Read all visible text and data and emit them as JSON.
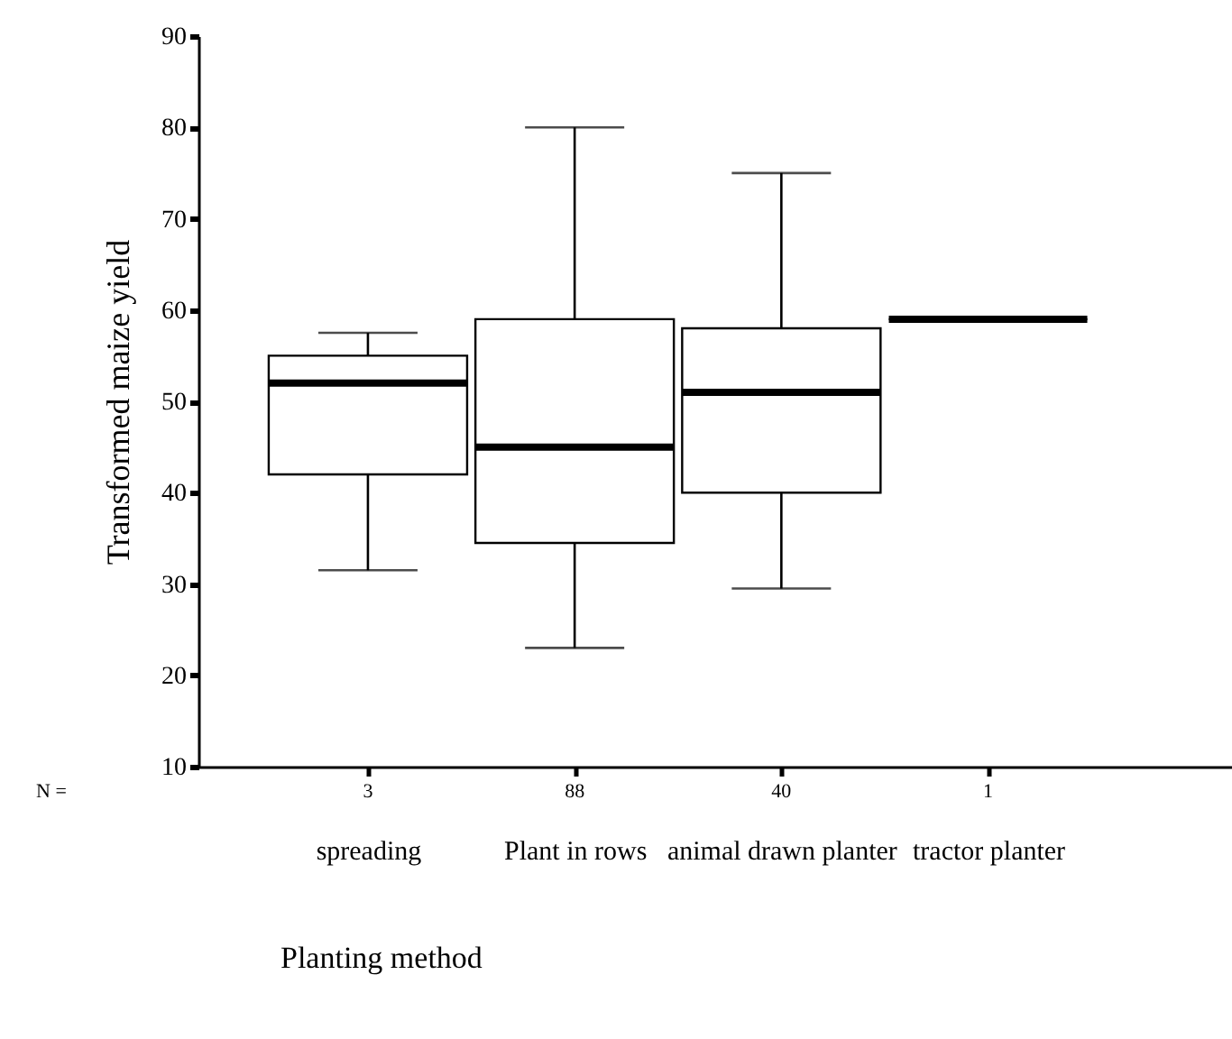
{
  "chart_data": {
    "type": "box",
    "xlabel": "Planting method",
    "ylabel": "Transformed maize yield",
    "categories": [
      "spreading",
      "Plant in rows",
      "animal drawn planter",
      "tractor planter"
    ],
    "boxes": [
      {
        "low": 31.5,
        "q1": 42,
        "median": 52,
        "q3": 55,
        "high": 57.5
      },
      {
        "low": 23,
        "q1": 34.5,
        "median": 45,
        "q3": 59,
        "high": 80
      },
      {
        "low": 29.5,
        "q1": 40,
        "median": 51,
        "q3": 58,
        "high": 75
      },
      {
        "low": 59,
        "q1": 59,
        "median": 59,
        "q3": 59,
        "high": 59
      }
    ],
    "ylim": [
      10,
      90
    ],
    "yticks": [
      10,
      20,
      30,
      40,
      50,
      60,
      70,
      80,
      90
    ],
    "annotations": [
      "N =",
      "3",
      "88",
      "40",
      "1"
    ]
  }
}
